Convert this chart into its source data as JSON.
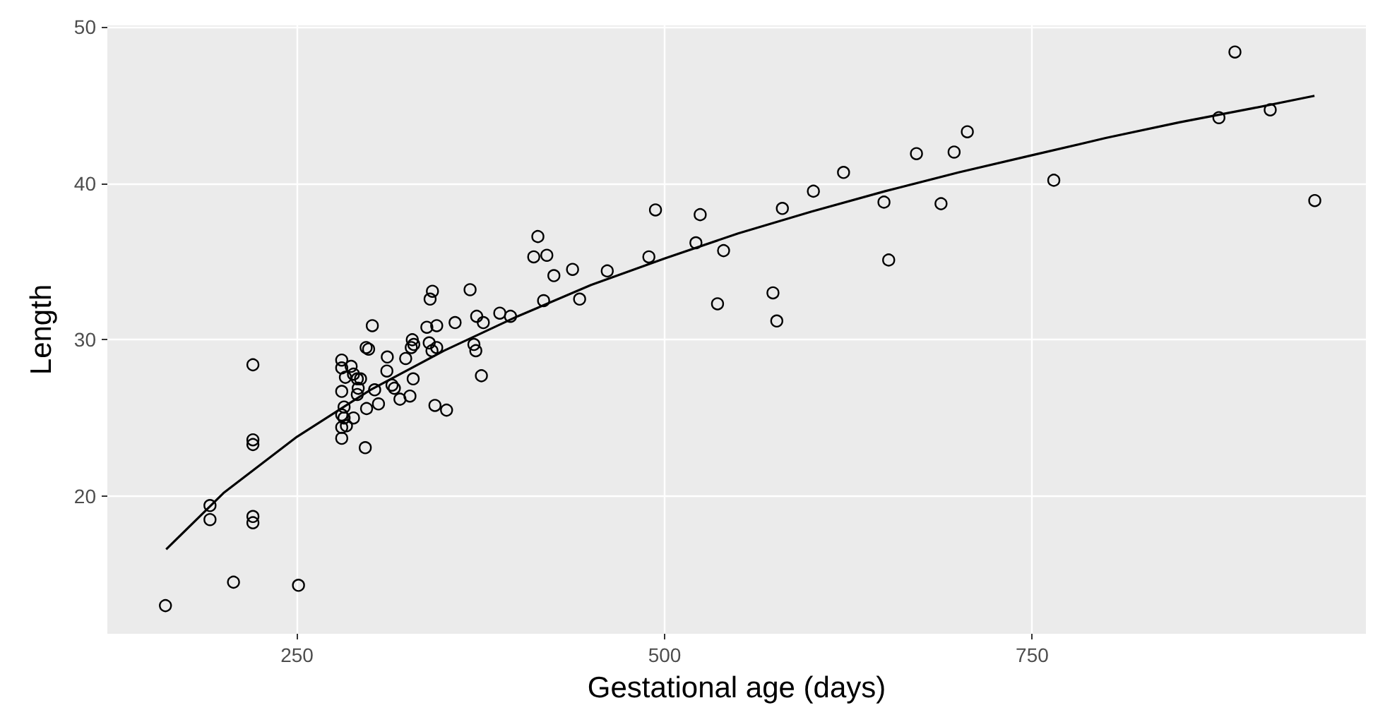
{
  "chart_data": {
    "type": "scatter",
    "xlabel": "Gestational age (days)",
    "ylabel": "Length",
    "xlim": [
      121,
      977
    ],
    "ylim": [
      11.2,
      50.1
    ],
    "xticks": [
      250,
      500,
      750
    ],
    "yticks": [
      20,
      30,
      40,
      50
    ],
    "grid": true,
    "series": [
      {
        "marker": "circle",
        "color": "#000000",
        "x": [
          220,
          220,
          220,
          190.8,
          190.8,
          220,
          220,
          206.8,
          251,
          160.5,
          413.8,
          411,
          419.9,
          424.7,
          437.4,
          461,
          417.7,
          442.2,
          367.7,
          342.1,
          340.5,
          301.2,
          338.3,
          345,
          357.5,
          372.2,
          376.7,
          387.9,
          395.2,
          370.3,
          371.6,
          375.4,
          343.8,
          351.7,
          328.4,
          329.4,
          327.7,
          339.9,
          341.8,
          345,
          297,
          298.7,
          311.4,
          323.9,
          311.1,
          329,
          314.6,
          316.2,
          320,
          326.8,
          305.4,
          297.3,
          296.4,
          302.8,
          280.4,
          280.4,
          282.9,
          286.8,
          288.4,
          291,
          293.2,
          291.6,
          280.4,
          291,
          282,
          280.4,
          282,
          288.4,
          280.4,
          283.6,
          280.4,
          493.8,
          524.2,
          489.3,
          521.3,
          540.1,
          536,
          573.7,
          576.3,
          580.1,
          601.2,
          621.7,
          649.2,
          652.4,
          671.3,
          696.9,
          705.9,
          688,
          764.7,
          877,
          887.9,
          911.9,
          942.2
        ],
        "values": [
          28.4,
          23.6,
          23.3,
          19.4,
          18.5,
          18.7,
          18.3,
          14.5,
          14.3,
          13.0,
          36.6,
          35.3,
          35.4,
          34.1,
          34.5,
          34.4,
          32.5,
          32.6,
          33.2,
          33.1,
          32.6,
          30.9,
          30.8,
          30.9,
          31.1,
          31.5,
          31.1,
          31.7,
          31.5,
          29.7,
          29.3,
          27.7,
          25.8,
          25.5,
          30.0,
          29.7,
          29.5,
          29.8,
          29.3,
          29.5,
          29.5,
          29.4,
          28.9,
          28.8,
          28.0,
          27.5,
          27.1,
          26.9,
          26.2,
          26.4,
          25.9,
          25.6,
          23.1,
          26.8,
          28.7,
          28.2,
          27.6,
          28.3,
          27.8,
          27.5,
          27.5,
          26.9,
          26.7,
          26.5,
          25.7,
          25.2,
          25.0,
          25.0,
          24.4,
          24.5,
          23.7,
          38.3,
          38.0,
          35.3,
          36.2,
          35.7,
          32.3,
          33.0,
          31.2,
          38.4,
          39.5,
          40.7,
          38.8,
          35.1,
          41.9,
          42.0,
          43.3,
          38.7,
          40.2,
          44.2,
          48.4,
          44.7,
          38.9
        ]
      },
      {
        "type": "line",
        "marker": "none",
        "color": "#000000",
        "x": [
          161,
          200,
          250,
          300,
          350,
          400,
          450,
          500,
          550,
          600,
          650,
          700,
          750,
          800,
          850,
          900,
          942
        ],
        "values": [
          16.6,
          20.2,
          23.8,
          26.8,
          29.3,
          31.5,
          33.5,
          35.2,
          36.8,
          38.2,
          39.5,
          40.7,
          41.8,
          42.9,
          43.9,
          44.8,
          45.6
        ]
      }
    ]
  }
}
